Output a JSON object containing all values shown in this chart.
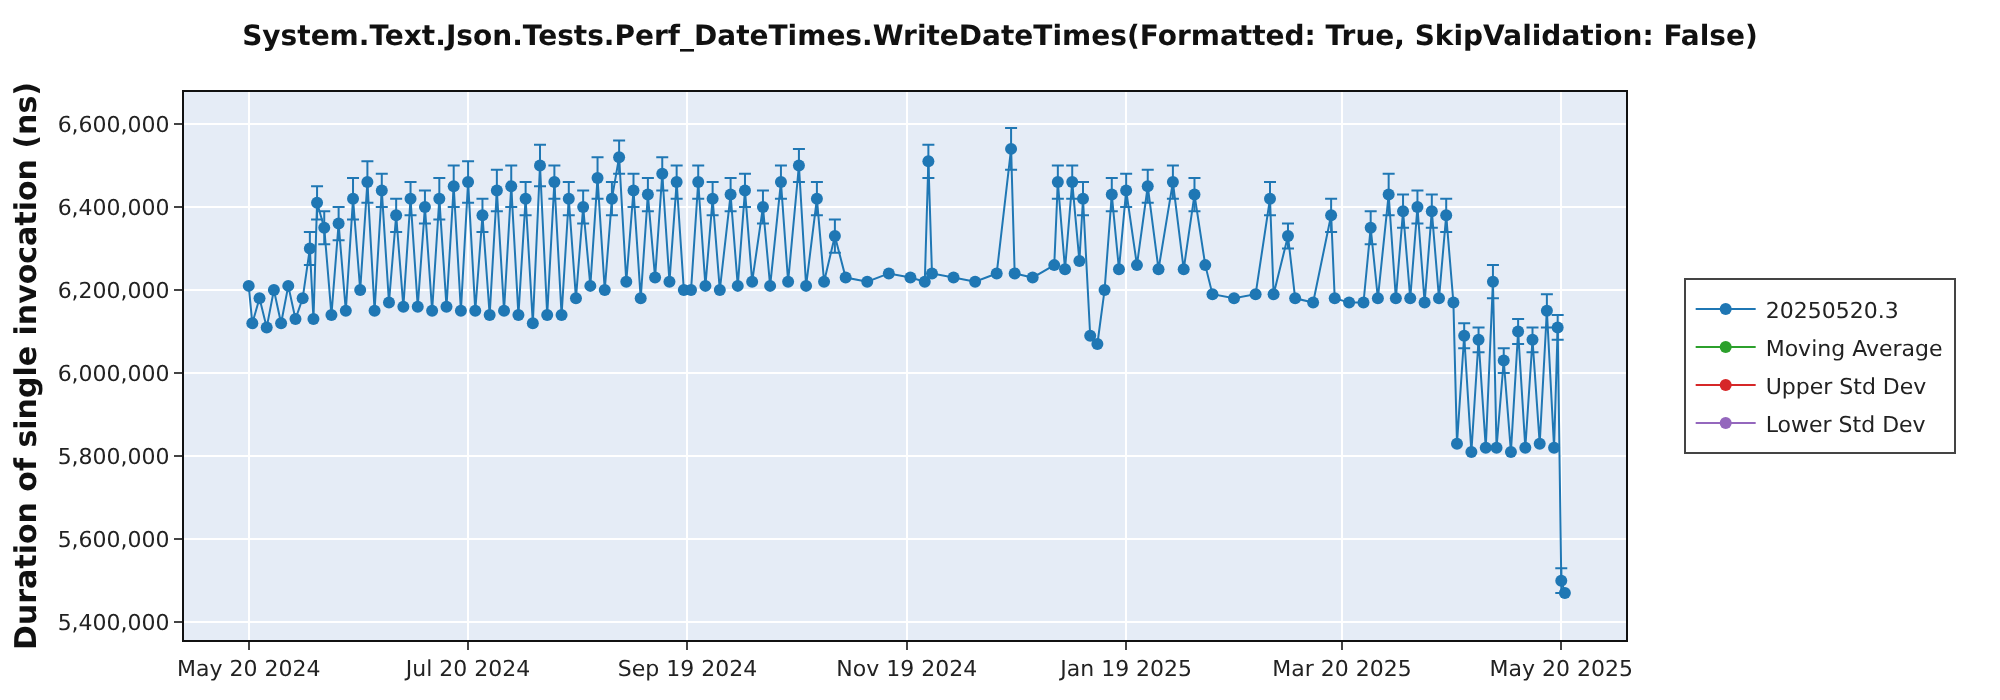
{
  "chart_data": {
    "type": "line",
    "title": "System.Text.Json.Tests.Perf_DateTimes.WriteDateTimes(Formatted: True, SkipValidation: False)",
    "ylabel": "Duration of single invocation (ns)",
    "x": [
      "2024-05-20",
      "2024-05-21",
      "2024-05-23",
      "2024-05-25",
      "2024-05-27",
      "2024-05-29",
      "2024-05-31",
      "2024-06-02",
      "2024-06-04",
      "2024-06-06",
      "2024-06-07",
      "2024-06-08",
      "2024-06-10",
      "2024-06-12",
      "2024-06-14",
      "2024-06-16",
      "2024-06-18",
      "2024-06-20",
      "2024-06-22",
      "2024-06-24",
      "2024-06-26",
      "2024-06-28",
      "2024-06-30",
      "2024-07-02",
      "2024-07-04",
      "2024-07-06",
      "2024-07-08",
      "2024-07-10",
      "2024-07-12",
      "2024-07-14",
      "2024-07-16",
      "2024-07-18",
      "2024-07-20",
      "2024-07-22",
      "2024-07-24",
      "2024-07-26",
      "2024-07-28",
      "2024-07-30",
      "2024-08-01",
      "2024-08-03",
      "2024-08-05",
      "2024-08-07",
      "2024-08-09",
      "2024-08-11",
      "2024-08-13",
      "2024-08-15",
      "2024-08-17",
      "2024-08-19",
      "2024-08-21",
      "2024-08-23",
      "2024-08-25",
      "2024-08-27",
      "2024-08-29",
      "2024-08-31",
      "2024-09-02",
      "2024-09-04",
      "2024-09-06",
      "2024-09-08",
      "2024-09-10",
      "2024-09-12",
      "2024-09-14",
      "2024-09-16",
      "2024-09-18",
      "2024-09-20",
      "2024-09-22",
      "2024-09-24",
      "2024-09-26",
      "2024-09-28",
      "2024-10-01",
      "2024-10-03",
      "2024-10-05",
      "2024-10-07",
      "2024-10-10",
      "2024-10-12",
      "2024-10-15",
      "2024-10-17",
      "2024-10-20",
      "2024-10-22",
      "2024-10-25",
      "2024-10-27",
      "2024-10-30",
      "2024-11-02",
      "2024-11-08",
      "2024-11-14",
      "2024-11-20",
      "2024-11-24",
      "2024-11-25",
      "2024-11-26",
      "2024-12-02",
      "2024-12-08",
      "2024-12-14",
      "2024-12-18",
      "2024-12-19",
      "2024-12-24",
      "2024-12-30",
      "2024-12-31",
      "2025-01-02",
      "2025-01-04",
      "2025-01-06",
      "2025-01-07",
      "2025-01-09",
      "2025-01-11",
      "2025-01-13",
      "2025-01-15",
      "2025-01-17",
      "2025-01-19",
      "2025-01-22",
      "2025-01-25",
      "2025-01-28",
      "2025-02-01",
      "2025-02-04",
      "2025-02-07",
      "2025-02-10",
      "2025-02-12",
      "2025-02-18",
      "2025-02-24",
      "2025-02-28",
      "2025-03-01",
      "2025-03-05",
      "2025-03-07",
      "2025-03-12",
      "2025-03-17",
      "2025-03-18",
      "2025-03-22",
      "2025-03-26",
      "2025-03-28",
      "2025-03-30",
      "2025-04-02",
      "2025-04-04",
      "2025-04-06",
      "2025-04-08",
      "2025-04-10",
      "2025-04-12",
      "2025-04-14",
      "2025-04-16",
      "2025-04-18",
      "2025-04-20",
      "2025-04-21",
      "2025-04-23",
      "2025-04-25",
      "2025-04-27",
      "2025-04-29",
      "2025-05-01",
      "2025-05-02",
      "2025-05-04",
      "2025-05-06",
      "2025-05-08",
      "2025-05-10",
      "2025-05-12",
      "2025-05-14",
      "2025-05-16",
      "2025-05-18",
      "2025-05-19",
      "2025-05-20",
      "2025-05-21"
    ],
    "series": [
      {
        "name": "20250520.3",
        "color": "#1f77b4",
        "values": [
          6210000,
          6120000,
          6180000,
          6110000,
          6200000,
          6120000,
          6210000,
          6130000,
          6180000,
          6300000,
          6130000,
          6410000,
          6350000,
          6140000,
          6360000,
          6150000,
          6420000,
          6200000,
          6460000,
          6150000,
          6440000,
          6170000,
          6380000,
          6160000,
          6420000,
          6160000,
          6400000,
          6150000,
          6420000,
          6160000,
          6450000,
          6150000,
          6460000,
          6150000,
          6380000,
          6140000,
          6440000,
          6150000,
          6450000,
          6140000,
          6420000,
          6120000,
          6500000,
          6140000,
          6460000,
          6140000,
          6420000,
          6180000,
          6400000,
          6210000,
          6470000,
          6200000,
          6420000,
          6520000,
          6220000,
          6440000,
          6180000,
          6430000,
          6230000,
          6480000,
          6220000,
          6460000,
          6200000,
          6200000,
          6460000,
          6210000,
          6420000,
          6200000,
          6430000,
          6210000,
          6440000,
          6220000,
          6400000,
          6210000,
          6460000,
          6220000,
          6500000,
          6210000,
          6420000,
          6220000,
          6330000,
          6230000,
          6220000,
          6240000,
          6230000,
          6220000,
          6510000,
          6240000,
          6230000,
          6220000,
          6240000,
          6540000,
          6240000,
          6230000,
          6260000,
          6460000,
          6250000,
          6460000,
          6270000,
          6420000,
          6090000,
          6070000,
          6200000,
          6430000,
          6250000,
          6440000,
          6260000,
          6450000,
          6250000,
          6460000,
          6250000,
          6430000,
          6260000,
          6190000,
          6180000,
          6190000,
          6420000,
          6190000,
          6330000,
          6180000,
          6170000,
          6380000,
          6180000,
          6170000,
          6170000,
          6350000,
          6180000,
          6430000,
          6180000,
          6390000,
          6180000,
          6400000,
          6170000,
          6390000,
          6180000,
          6380000,
          6170000,
          5830000,
          6090000,
          5810000,
          6080000,
          5820000,
          6220000,
          5820000,
          6030000,
          5810000,
          6100000,
          5820000,
          6080000,
          5830000,
          6150000,
          5820000,
          6110000,
          5500000,
          5470000
        ],
        "errors": [
          null,
          null,
          null,
          null,
          null,
          null,
          null,
          null,
          null,
          40000,
          null,
          40000,
          40000,
          null,
          40000,
          null,
          50000,
          null,
          50000,
          null,
          40000,
          null,
          40000,
          null,
          40000,
          null,
          40000,
          null,
          50000,
          null,
          50000,
          null,
          50000,
          null,
          40000,
          null,
          50000,
          null,
          50000,
          null,
          40000,
          null,
          50000,
          null,
          40000,
          null,
          40000,
          null,
          40000,
          null,
          50000,
          null,
          40000,
          40000,
          null,
          40000,
          null,
          40000,
          null,
          40000,
          null,
          40000,
          null,
          null,
          40000,
          null,
          40000,
          null,
          40000,
          null,
          40000,
          null,
          40000,
          null,
          40000,
          null,
          40000,
          null,
          40000,
          null,
          40000,
          null,
          null,
          null,
          null,
          null,
          40000,
          null,
          null,
          null,
          null,
          50000,
          null,
          null,
          null,
          40000,
          null,
          40000,
          null,
          40000,
          null,
          null,
          null,
          40000,
          null,
          40000,
          null,
          40000,
          null,
          40000,
          null,
          40000,
          null,
          null,
          null,
          null,
          40000,
          null,
          30000,
          null,
          null,
          40000,
          null,
          null,
          null,
          40000,
          null,
          50000,
          null,
          40000,
          null,
          40000,
          null,
          40000,
          null,
          40000,
          null,
          null,
          30000,
          null,
          30000,
          null,
          40000,
          null,
          30000,
          null,
          30000,
          null,
          30000,
          null,
          40000,
          null,
          30000,
          30000,
          null
        ]
      },
      {
        "name": "Moving Average",
        "color": "#2ca02c",
        "values": [
          null,
          null,
          null,
          null,
          null,
          null,
          null,
          null,
          null,
          null,
          null,
          null,
          null,
          null,
          null,
          null,
          null,
          null,
          null,
          null,
          null,
          null,
          null,
          null,
          null,
          null,
          null,
          null,
          null,
          null,
          null,
          null,
          null,
          null,
          null,
          null,
          null,
          null,
          null,
          null,
          null,
          null,
          null,
          null,
          null,
          null,
          null,
          null,
          null,
          null,
          null,
          null,
          null,
          null,
          null,
          null,
          null,
          null,
          null,
          null,
          null,
          null,
          null,
          null,
          null,
          null,
          null,
          null,
          null,
          null,
          null,
          null,
          null,
          null,
          null,
          null,
          null,
          null,
          null,
          null,
          null,
          null,
          null,
          null,
          null,
          null,
          null,
          null,
          null,
          null,
          null,
          null,
          null,
          null,
          null,
          null,
          null,
          null,
          null,
          null,
          null,
          null,
          null,
          null,
          null,
          null,
          null,
          null,
          null,
          null,
          null,
          null,
          null,
          null,
          null,
          null,
          null,
          null,
          null,
          null,
          null,
          null,
          null,
          null,
          null,
          null,
          null,
          null,
          null,
          null,
          null,
          null,
          null,
          null,
          null,
          null,
          null,
          null,
          null,
          null,
          null,
          null,
          null,
          null,
          null,
          null,
          null,
          null,
          null,
          null,
          null,
          null,
          null,
          null,
          null
        ]
      },
      {
        "name": "Upper Std Dev",
        "color": "#d62728",
        "values": [
          null,
          null,
          null,
          null,
          null,
          null,
          null,
          null,
          null,
          null,
          null,
          null,
          null,
          null,
          null,
          null,
          null,
          null,
          null,
          null,
          null,
          null,
          null,
          null,
          null,
          null,
          null,
          null,
          null,
          null,
          null,
          null,
          null,
          null,
          null,
          null,
          null,
          null,
          null,
          null,
          null,
          null,
          null,
          null,
          null,
          null,
          null,
          null,
          null,
          null,
          null,
          null,
          null,
          null,
          null,
          null,
          null,
          null,
          null,
          null,
          null,
          null,
          null,
          null,
          null,
          null,
          null,
          null,
          null,
          null,
          null,
          null,
          null,
          null,
          null,
          null,
          null,
          null,
          null,
          null,
          null,
          null,
          null,
          null,
          null,
          null,
          null,
          null,
          null,
          null,
          null,
          null,
          null,
          null,
          null,
          null,
          null,
          null,
          null,
          null,
          null,
          null,
          null,
          null,
          null,
          null,
          null,
          null,
          null,
          null,
          null,
          null,
          null,
          null,
          null,
          null,
          null,
          null,
          null,
          null,
          null,
          null,
          null,
          null,
          null,
          null,
          null,
          null,
          null,
          null,
          null,
          null,
          null,
          null,
          null,
          null,
          null,
          null,
          null,
          null,
          null,
          null,
          null,
          null,
          null,
          null,
          null,
          null,
          null,
          null,
          null,
          null,
          null,
          null,
          null
        ]
      },
      {
        "name": "Lower Std Dev",
        "color": "#9467bd",
        "values": [
          null,
          null,
          null,
          null,
          null,
          null,
          null,
          null,
          null,
          null,
          null,
          null,
          null,
          null,
          null,
          null,
          null,
          null,
          null,
          null,
          null,
          null,
          null,
          null,
          null,
          null,
          null,
          null,
          null,
          null,
          null,
          null,
          null,
          null,
          null,
          null,
          null,
          null,
          null,
          null,
          null,
          null,
          null,
          null,
          null,
          null,
          null,
          null,
          null,
          null,
          null,
          null,
          null,
          null,
          null,
          null,
          null,
          null,
          null,
          null,
          null,
          null,
          null,
          null,
          null,
          null,
          null,
          null,
          null,
          null,
          null,
          null,
          null,
          null,
          null,
          null,
          null,
          null,
          null,
          null,
          null,
          null,
          null,
          null,
          null,
          null,
          null,
          null,
          null,
          null,
          null,
          null,
          null,
          null,
          null,
          null,
          null,
          null,
          null,
          null,
          null,
          null,
          null,
          null,
          null,
          null,
          null,
          null,
          null,
          null,
          null,
          null,
          null,
          null,
          null,
          null,
          null,
          null,
          null,
          null,
          null,
          null,
          null,
          null,
          null,
          null,
          null,
          null,
          null,
          null,
          null,
          null,
          null,
          null,
          null,
          null,
          null,
          null,
          null,
          null,
          null,
          null,
          null,
          null,
          null,
          null,
          null,
          null,
          null,
          null,
          null,
          null,
          null,
          null,
          null
        ]
      }
    ],
    "xlim": [
      "2024-05-02",
      "2025-06-07"
    ],
    "xticks": [
      {
        "value": "2024-05-20",
        "label": "May 20 2024"
      },
      {
        "value": "2024-07-20",
        "label": "Jul 20 2024"
      },
      {
        "value": "2024-09-19",
        "label": "Sep 19 2024"
      },
      {
        "value": "2024-11-19",
        "label": "Nov 19 2024"
      },
      {
        "value": "2025-01-19",
        "label": "Jan 19 2025"
      },
      {
        "value": "2025-03-20",
        "label": "Mar 20 2025"
      },
      {
        "value": "2025-05-20",
        "label": "May 20 2025"
      }
    ],
    "ylim": [
      5357000,
      6677000
    ],
    "yticks": [
      {
        "value": 5400000,
        "label": "5,400,000"
      },
      {
        "value": 5600000,
        "label": "5,600,000"
      },
      {
        "value": 5800000,
        "label": "5,800,000"
      },
      {
        "value": 6000000,
        "label": "6,000,000"
      },
      {
        "value": 6200000,
        "label": "6,200,000"
      },
      {
        "value": 6400000,
        "label": "6,400,000"
      },
      {
        "value": 6600000,
        "label": "6,600,000"
      }
    ],
    "grid": true,
    "legend": "right",
    "marker": "circle",
    "line_style": "solid"
  }
}
